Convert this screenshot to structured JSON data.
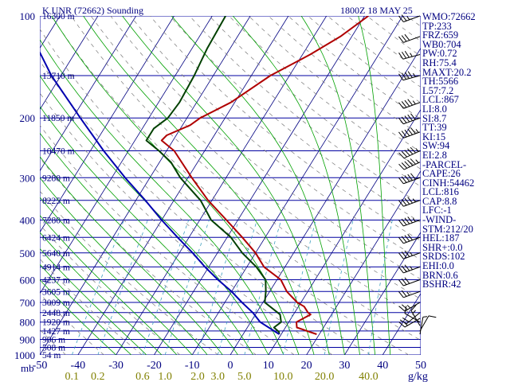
{
  "header": {
    "station": "K UNR (72662) Sounding",
    "time": "1800Z 18 MAY 25"
  },
  "axis": {
    "pressure_unit": "mb",
    "mixing_ratio_unit": "g/kg"
  },
  "stats": [
    "WMO:72662",
    "TP:233",
    "FRZ:659",
    "WB0:704",
    "PW:0.72",
    "RH:75.4",
    "MAXT:20.2",
    "TH:5566",
    "L57:7.2",
    "LCL:867",
    "LI:8.0",
    "SI:8.7",
    "TT:39",
    "KI:15",
    "SW:94",
    "EI:2.8",
    "-PARCEL-",
    "CAPE:26",
    "CINH:54462",
    "LCL:816",
    "CAP:8.8",
    "LFC:-1",
    "-WIND-",
    "STM:212/20",
    "HEL:187",
    "SHR+:0.0",
    "SRDS:102",
    "EHI:0.0",
    "BRN:0.6",
    "BSHR:42"
  ],
  "colors": {
    "text": "#000080",
    "isobar": "#0000a0",
    "isotherm": "#000080",
    "dry_adiabat": "#7a7a7a",
    "moist_adiabat": "#00a000",
    "mixing_ratio": "#40a0c0",
    "temperature": "#b00000",
    "dewpoint": "#004000",
    "parcel": "#0000b0",
    "wind": "#000000",
    "mixing_label": "#808000"
  },
  "chart_data": {
    "type": "line",
    "title": "K UNR (72662) Sounding",
    "subtitle": "1800Z 18 MAY 25",
    "xlabel": "",
    "ylabel": "",
    "skew_log_p": true,
    "xlim": [
      -50,
      50
    ],
    "ylim": [
      1000,
      100
    ],
    "pressure_ticks": [
      {
        "p": 100,
        "label": "100"
      },
      {
        "p": 200,
        "label": "200"
      },
      {
        "p": 300,
        "label": "300"
      },
      {
        "p": 400,
        "label": "400"
      },
      {
        "p": 500,
        "label": "500"
      },
      {
        "p": 600,
        "label": "600"
      },
      {
        "p": 700,
        "label": "700"
      },
      {
        "p": 800,
        "label": "800"
      },
      {
        "p": 900,
        "label": "900"
      },
      {
        "p": 1000,
        "label": "1000"
      }
    ],
    "temperature_ticks": [
      "-50",
      "-40",
      "-30",
      "-20",
      "-10",
      "0",
      "10",
      "20",
      "30",
      "40",
      "50"
    ],
    "height_labels": [
      {
        "p": 100,
        "label": "16300 m"
      },
      {
        "p": 150,
        "label": "13710 m"
      },
      {
        "p": 200,
        "label": "11850 m"
      },
      {
        "p": 250,
        "label": "10470 m"
      },
      {
        "p": 300,
        "label": "9280 m"
      },
      {
        "p": 350,
        "label": "8225 m"
      },
      {
        "p": 400,
        "label": "7280 m"
      },
      {
        "p": 450,
        "label": "6424 m"
      },
      {
        "p": 500,
        "label": "5640 m"
      },
      {
        "p": 550,
        "label": "4914 m"
      },
      {
        "p": 600,
        "label": "4237 m"
      },
      {
        "p": 650,
        "label": "3605 m"
      },
      {
        "p": 700,
        "label": "3009 m"
      },
      {
        "p": 750,
        "label": "2448 m"
      },
      {
        "p": 800,
        "label": "1920 m"
      },
      {
        "p": 850,
        "label": "1427 m"
      },
      {
        "p": 900,
        "label": "906 m"
      },
      {
        "p": 950,
        "label": "508 m"
      },
      {
        "p": 1000,
        "label": "54 m"
      }
    ],
    "mixing_ratio_labels": [
      {
        "w": 0.1,
        "label": "0.1"
      },
      {
        "w": 0.2,
        "label": "0.2"
      },
      {
        "w": 0.6,
        "label": "0.6"
      },
      {
        "w": 1.0,
        "label": "1.0"
      },
      {
        "w": 2.0,
        "label": "2.0"
      },
      {
        "w": 3.0,
        "label": "3.0"
      },
      {
        "w": 5.0,
        "label": "5.0"
      },
      {
        "w": 10.0,
        "label": "10.0"
      },
      {
        "w": 20.0,
        "label": "20.0"
      },
      {
        "w": 40.0,
        "label": "40.0"
      }
    ],
    "series": [
      {
        "key": "temperature",
        "values": [
          [
            869,
            19.3
          ],
          [
            830,
            13.0
          ],
          [
            800,
            12.0
          ],
          [
            760,
            14.5
          ],
          [
            750,
            13.5
          ],
          [
            720,
            11.5
          ],
          [
            700,
            9.0
          ],
          [
            650,
            4.5
          ],
          [
            600,
            1.0
          ],
          [
            550,
            -5.5
          ],
          [
            500,
            -10.0
          ],
          [
            450,
            -16.0
          ],
          [
            400,
            -23.0
          ],
          [
            350,
            -31.0
          ],
          [
            300,
            -39.0
          ],
          [
            250,
            -48.0
          ],
          [
            233,
            -53.0
          ],
          [
            225,
            -52.5
          ],
          [
            210,
            -48.0
          ],
          [
            200,
            -46.5
          ],
          [
            180,
            -41.0
          ],
          [
            150,
            -35.0
          ],
          [
            130,
            -28.0
          ],
          [
            115,
            -23.0
          ],
          [
            100,
            -19.0
          ]
        ]
      },
      {
        "key": "dewpoint",
        "values": [
          [
            869,
            9.5
          ],
          [
            855,
            9.0
          ],
          [
            830,
            7.0
          ],
          [
            800,
            8.0
          ],
          [
            760,
            6.5
          ],
          [
            700,
            0.5
          ],
          [
            650,
            -1.0
          ],
          [
            600,
            -3.0
          ],
          [
            550,
            -7.5
          ],
          [
            500,
            -13.5
          ],
          [
            450,
            -19.0
          ],
          [
            400,
            -27.0
          ],
          [
            350,
            -33.0
          ],
          [
            300,
            -42.0
          ],
          [
            270,
            -47.0
          ],
          [
            250,
            -52.0
          ],
          [
            233,
            -57.0
          ],
          [
            215,
            -57.0
          ],
          [
            200,
            -55.0
          ],
          [
            180,
            -54.5
          ],
          [
            150,
            -55.0
          ],
          [
            125,
            -56.0
          ],
          [
            100,
            -56.5
          ]
        ]
      },
      {
        "key": "parcel",
        "values": [
          [
            869,
            9.5
          ],
          [
            800,
            2.5
          ],
          [
            750,
            -1.0
          ],
          [
            700,
            -5.5
          ],
          [
            650,
            -10.0
          ],
          [
            600,
            -15.5
          ],
          [
            550,
            -21.0
          ],
          [
            500,
            -26.5
          ],
          [
            450,
            -33.0
          ],
          [
            400,
            -40.0
          ],
          [
            350,
            -47.5
          ],
          [
            300,
            -56.5
          ],
          [
            250,
            -66.5
          ],
          [
            200,
            -78.0
          ],
          [
            150,
            -92.5
          ],
          [
            115,
            -104.0
          ]
        ]
      }
    ],
    "wind_barbs": [
      {
        "p": 869,
        "dir": 10,
        "spd": 5
      },
      {
        "p": 850,
        "dir": 30,
        "spd": 10
      },
      {
        "p": 820,
        "dir": 330,
        "spd": 15
      },
      {
        "p": 800,
        "dir": 300,
        "spd": 10
      },
      {
        "p": 780,
        "dir": 240,
        "spd": 15
      },
      {
        "p": 750,
        "dir": 230,
        "spd": 20
      },
      {
        "p": 700,
        "dir": 240,
        "spd": 25
      },
      {
        "p": 650,
        "dir": 250,
        "spd": 25
      },
      {
        "p": 600,
        "dir": 250,
        "spd": 30
      },
      {
        "p": 550,
        "dir": 250,
        "spd": 35
      },
      {
        "p": 500,
        "dir": 250,
        "spd": 35
      },
      {
        "p": 450,
        "dir": 250,
        "spd": 40
      },
      {
        "p": 400,
        "dir": 250,
        "spd": 45
      },
      {
        "p": 350,
        "dir": 250,
        "spd": 45
      },
      {
        "p": 300,
        "dir": 250,
        "spd": 50
      },
      {
        "p": 270,
        "dir": 245,
        "spd": 55
      },
      {
        "p": 250,
        "dir": 245,
        "spd": 55
      },
      {
        "p": 220,
        "dir": 250,
        "spd": 55
      },
      {
        "p": 200,
        "dir": 250,
        "spd": 50
      },
      {
        "p": 180,
        "dir": 250,
        "spd": 45
      },
      {
        "p": 150,
        "dir": 255,
        "spd": 45
      },
      {
        "p": 130,
        "dir": 255,
        "spd": 35
      },
      {
        "p": 115,
        "dir": 250,
        "spd": 30
      },
      {
        "p": 100,
        "dir": 250,
        "spd": 25
      }
    ]
  }
}
